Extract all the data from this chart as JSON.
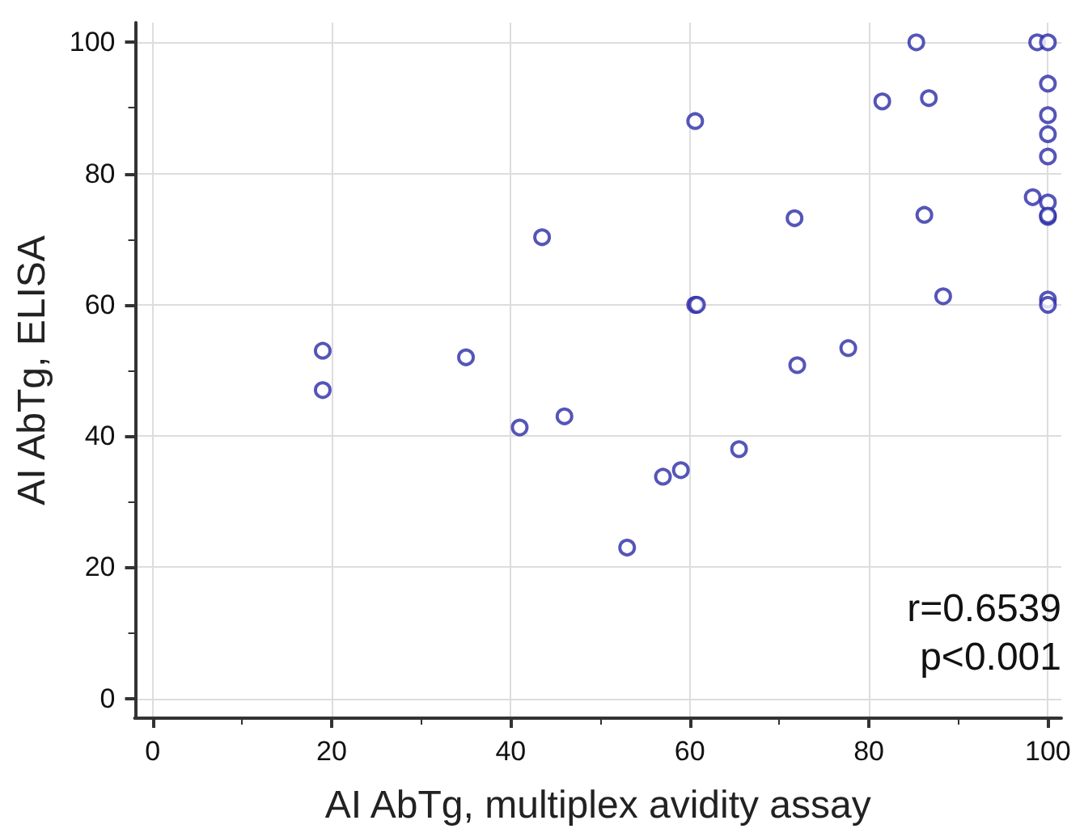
{
  "chart_data": {
    "type": "scatter",
    "xlabel": "AI AbTg, multiplex avidity assay",
    "ylabel": "AI AbTg, ELISA",
    "annotations": [
      "r=0.6539",
      "p<0.001"
    ],
    "x": [
      19,
      19,
      35,
      41,
      43.5,
      46,
      53,
      57,
      59,
      60.6,
      60.6,
      60.8,
      65.5,
      71.7,
      72,
      77.7,
      81.5,
      85.3,
      86.2,
      86.7,
      88.3,
      98.3,
      98.8,
      100,
      100,
      100,
      100,
      100,
      100,
      100,
      100,
      100,
      100
    ],
    "series": [
      {
        "color": "#2b2ba6",
        "values": [
          53,
          47,
          52,
          41.3,
          70.3,
          43,
          23,
          33.8,
          34.8,
          88,
          60,
          60,
          38,
          73.2,
          50.8,
          53.4,
          91,
          100,
          73.7,
          91.5,
          61.3,
          76.4,
          100,
          100,
          93.7,
          88.9,
          86,
          82.6,
          75.6,
          73.4,
          73.6,
          60.8,
          60
        ]
      }
    ],
    "xlim": [
      -2,
      101.5
    ],
    "ylim": [
      -3,
      103
    ],
    "xticks": [
      0,
      20,
      40,
      60,
      80,
      100
    ],
    "yticks": [
      0,
      20,
      40,
      60,
      80,
      100
    ],
    "grid": true,
    "marker": "circle"
  }
}
